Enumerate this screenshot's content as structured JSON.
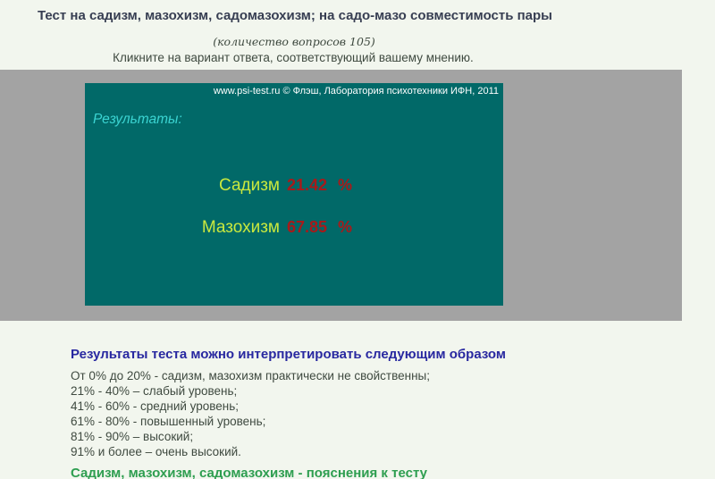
{
  "page": {
    "title": "Тест на садизм, мазохизм, садомазохизм; на садо-мазо совместимость пары",
    "question_count_note": "(количество вопросов 105)",
    "instruction": "Кликните на вариант ответа, соответствующий вашему мнению."
  },
  "flash": {
    "copyright": "www.psi-test.ru © Флэш, Лаборатория психотехники ИФН, 2011",
    "results_label": "Результаты:",
    "results": [
      {
        "label": "Садизм",
        "value": "21.42",
        "unit": "%"
      },
      {
        "label": "Мазохизм",
        "value": "67.85",
        "unit": "%"
      }
    ]
  },
  "interpretation": {
    "heading": "Результаты теста можно интерпретировать следующим образом",
    "lines": [
      "От 0% до 20% - садизм, мазохизм практически не свойственны;",
      "21% - 40% – слабый уровень;",
      "41% - 60% - средний уровень;",
      "61% - 80% - повышенный уровень;",
      "81% - 90% – высокий;",
      "91% и более – очень высокий."
    ]
  },
  "footer_link": {
    "label": "Садизм, мазохизм, садомазохизм - пояснения к тесту"
  },
  "colors": {
    "page_background": "#f2f6ee",
    "gray_band": "#a3a3a3",
    "flash_background": "#016968",
    "results_label_cyan": "#3bd4d2",
    "result_name_yellow_green": "#c9e83e",
    "result_value_dark_red": "#a81a1a",
    "heading_navy": "#2828a0",
    "body_text": "#3f4a40",
    "link_green": "#2e9e50",
    "copyright_white": "#ffffff"
  }
}
